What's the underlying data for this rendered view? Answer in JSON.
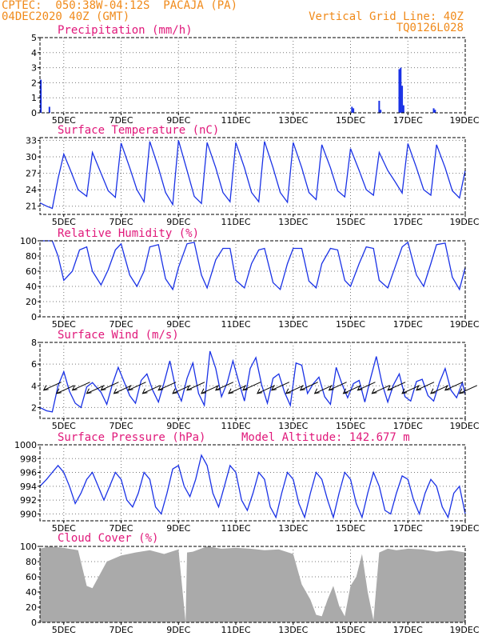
{
  "header": {
    "line1": "CPTEC:  050:38W-04:12S  PACAJA (PA)",
    "line2": "04DEC2020 40Z (GMT)",
    "grid_note": "Vertical Grid Line: 40Z",
    "code": "TQ0126L028"
  },
  "x_axis": {
    "start_day": 4.17,
    "end_day": 19,
    "tick_days": [
      5,
      7,
      9,
      11,
      13,
      15,
      17,
      19
    ],
    "tick_labels": [
      "5DEC",
      "7DEC",
      "9DEC",
      "11DEC",
      "13DEC",
      "15DEC",
      "17DEC",
      "19DEC"
    ]
  },
  "colors": {
    "series": "#1a32e6",
    "cloud": "#aaaaaa",
    "title": "#e0187a",
    "header": "#f08a1a"
  },
  "chart_data": [
    {
      "id": "precipitation",
      "type": "bar",
      "title": "Precipitation (mm/h)",
      "ylim": [
        0,
        5
      ],
      "yticks": [
        0,
        1,
        2,
        3,
        4,
        5
      ],
      "x": [
        4.2,
        4.5,
        15.05,
        15.1,
        16.0,
        16.05,
        16.7,
        16.75,
        16.8,
        16.85,
        17.9,
        17.95
      ],
      "values": [
        2.2,
        0.4,
        0.4,
        0.3,
        0.8,
        0.2,
        2.9,
        3.0,
        1.8,
        0.5,
        0.3,
        0.2
      ]
    },
    {
      "id": "temperature",
      "type": "line",
      "title": "Surface Temperature (nC)",
      "ylim": [
        19.5,
        33.5
      ],
      "yticks": [
        21,
        24,
        27,
        30,
        33
      ],
      "x": [
        4.17,
        4.4,
        4.6,
        4.8,
        5.0,
        5.2,
        5.5,
        5.8,
        6.0,
        6.3,
        6.55,
        6.8,
        7.0,
        7.3,
        7.55,
        7.8,
        8.0,
        8.3,
        8.55,
        8.8,
        9.0,
        9.3,
        9.55,
        9.8,
        10.0,
        10.3,
        10.55,
        10.8,
        11.0,
        11.3,
        11.55,
        11.8,
        12.0,
        12.3,
        12.55,
        12.8,
        13.0,
        13.3,
        13.55,
        13.8,
        14.0,
        14.3,
        14.55,
        14.8,
        15.0,
        15.3,
        15.55,
        15.8,
        16.0,
        16.3,
        16.55,
        16.8,
        17.0,
        17.3,
        17.55,
        17.8,
        18.0,
        18.3,
        18.55,
        18.8,
        19.0
      ],
      "values": [
        21.6,
        21.0,
        20.6,
        26.0,
        30.5,
        28.0,
        24.0,
        22.8,
        30.8,
        27.0,
        23.8,
        22.6,
        32.5,
        28.0,
        24.0,
        21.8,
        32.8,
        28.0,
        23.5,
        21.3,
        33.0,
        27.5,
        22.8,
        21.5,
        32.6,
        28.0,
        23.5,
        21.8,
        32.6,
        28.0,
        23.5,
        21.8,
        32.8,
        28.0,
        23.5,
        21.7,
        32.6,
        28.0,
        23.5,
        22.2,
        32.2,
        28.0,
        23.8,
        22.7,
        31.5,
        27.5,
        24.0,
        23.0,
        30.8,
        27.5,
        25.5,
        23.4,
        32.4,
        28.0,
        24.0,
        23.0,
        32.2,
        28.0,
        23.8,
        22.5,
        27.5
      ]
    },
    {
      "id": "humidity",
      "type": "line",
      "title": "Relative Humidity (%)",
      "ylim": [
        0,
        100
      ],
      "yticks": [
        0,
        20,
        40,
        60,
        80,
        100
      ],
      "x": [
        4.17,
        4.6,
        4.8,
        5.0,
        5.3,
        5.55,
        5.8,
        6.0,
        6.3,
        6.55,
        6.8,
        7.0,
        7.3,
        7.55,
        7.8,
        8.0,
        8.3,
        8.55,
        8.8,
        9.0,
        9.3,
        9.55,
        9.8,
        10.0,
        10.3,
        10.55,
        10.8,
        11.0,
        11.3,
        11.55,
        11.8,
        12.0,
        12.3,
        12.55,
        12.8,
        13.0,
        13.3,
        13.55,
        13.8,
        14.0,
        14.3,
        14.55,
        14.8,
        15.0,
        15.3,
        15.55,
        15.8,
        16.0,
        16.3,
        16.55,
        16.8,
        17.0,
        17.3,
        17.55,
        17.8,
        18.0,
        18.3,
        18.55,
        18.8,
        19.0
      ],
      "values": [
        100,
        100,
        80,
        48,
        60,
        88,
        92,
        60,
        42,
        62,
        88,
        96,
        55,
        40,
        60,
        92,
        95,
        50,
        36,
        65,
        96,
        98,
        55,
        38,
        75,
        90,
        90,
        48,
        38,
        70,
        88,
        90,
        45,
        36,
        70,
        90,
        90,
        47,
        38,
        70,
        90,
        88,
        48,
        40,
        70,
        92,
        90,
        48,
        38,
        65,
        92,
        98,
        55,
        40,
        70,
        95,
        97,
        52,
        36,
        65
      ]
    },
    {
      "id": "wind",
      "type": "line",
      "title": "Surface Wind (m/s)",
      "ylim": [
        1,
        8
      ],
      "yticks": [
        2,
        4,
        6,
        8
      ],
      "x": [
        4.17,
        4.4,
        4.6,
        4.8,
        5.0,
        5.2,
        5.4,
        5.6,
        5.8,
        6.0,
        6.3,
        6.5,
        6.7,
        6.9,
        7.1,
        7.3,
        7.5,
        7.7,
        7.9,
        8.1,
        8.3,
        8.5,
        8.7,
        8.9,
        9.1,
        9.3,
        9.5,
        9.7,
        9.9,
        10.1,
        10.3,
        10.5,
        10.7,
        10.9,
        11.1,
        11.3,
        11.5,
        11.7,
        11.9,
        12.1,
        12.3,
        12.5,
        12.7,
        12.9,
        13.1,
        13.3,
        13.5,
        13.7,
        13.9,
        14.1,
        14.3,
        14.5,
        14.7,
        14.9,
        15.1,
        15.3,
        15.5,
        15.7,
        15.9,
        16.1,
        16.3,
        16.5,
        16.7,
        16.9,
        17.1,
        17.3,
        17.5,
        17.7,
        17.9,
        18.1,
        18.3,
        18.5,
        18.7,
        18.9,
        19.0
      ],
      "values": [
        2.0,
        1.7,
        1.6,
        4.0,
        5.3,
        3.5,
        2.4,
        2.0,
        3.9,
        4.3,
        3.4,
        2.3,
        4.2,
        5.7,
        4.4,
        3.1,
        2.4,
        4.5,
        5.1,
        3.6,
        2.5,
        4.3,
        6.3,
        3.8,
        2.6,
        4.7,
        6.1,
        3.3,
        2.2,
        7.2,
        5.6,
        3.0,
        4.3,
        6.3,
        4.4,
        2.6,
        5.6,
        6.6,
        4.1,
        2.4,
        4.7,
        5.1,
        3.4,
        2.2,
        6.1,
        5.9,
        3.3,
        4.2,
        4.8,
        3.0,
        2.3,
        5.7,
        4.2,
        2.9,
        4.2,
        4.5,
        2.5,
        4.7,
        6.7,
        4.2,
        2.5,
        4.1,
        5.1,
        3.0,
        2.6,
        4.4,
        4.6,
        3.1,
        2.6,
        4.3,
        5.6,
        3.6,
        2.9,
        4.3,
        3.2
      ]
    },
    {
      "id": "pressure",
      "type": "line",
      "title": "Surface Pressure (hPa)",
      "ylim": [
        989,
        1000
      ],
      "yticks": [
        990,
        992,
        994,
        996,
        998,
        1000
      ],
      "x": [
        4.17,
        4.4,
        4.6,
        4.8,
        5.0,
        5.2,
        5.4,
        5.6,
        5.8,
        6.0,
        6.2,
        6.4,
        6.6,
        6.8,
        7.0,
        7.2,
        7.4,
        7.6,
        7.8,
        8.0,
        8.2,
        8.4,
        8.6,
        8.8,
        9.0,
        9.2,
        9.4,
        9.6,
        9.8,
        10.0,
        10.2,
        10.4,
        10.6,
        10.8,
        11.0,
        11.2,
        11.4,
        11.6,
        11.8,
        12.0,
        12.2,
        12.4,
        12.6,
        12.8,
        13.0,
        13.2,
        13.4,
        13.6,
        13.8,
        14.0,
        14.2,
        14.4,
        14.6,
        14.8,
        15.0,
        15.2,
        15.4,
        15.6,
        15.8,
        16.0,
        16.2,
        16.4,
        16.6,
        16.8,
        17.0,
        17.2,
        17.4,
        17.6,
        17.8,
        18.0,
        18.2,
        18.4,
        18.6,
        18.8,
        19.0
      ],
      "values": [
        994,
        995,
        996,
        997,
        996,
        994,
        991.5,
        993,
        995,
        996,
        994,
        992,
        994,
        996,
        995,
        992,
        991,
        993,
        996,
        995,
        991,
        990,
        993,
        996.5,
        997,
        994,
        992.5,
        995,
        998.5,
        997,
        993,
        991,
        994,
        997,
        996,
        992,
        990.5,
        993,
        996,
        995,
        991,
        989.5,
        993,
        996,
        995,
        991.5,
        989.5,
        993,
        996,
        995,
        992,
        989.5,
        993,
        996,
        995,
        991.5,
        989.5,
        993,
        996,
        994,
        990.5,
        990,
        993,
        995.5,
        995,
        992,
        990,
        993,
        995,
        994,
        991,
        989.5,
        993,
        994,
        990
      ]
    },
    {
      "id": "cloud",
      "type": "area",
      "title": "Cloud Cover (%)",
      "ylim": [
        0,
        100
      ],
      "yticks": [
        0,
        20,
        40,
        60,
        80,
        100
      ],
      "x": [
        4.17,
        4.5,
        5.0,
        5.5,
        5.8,
        6.0,
        6.5,
        7.0,
        7.5,
        8.0,
        8.5,
        9.0,
        9.25,
        9.3,
        9.5,
        10.0,
        10.5,
        11.0,
        11.5,
        12.0,
        12.5,
        13.0,
        13.3,
        13.6,
        13.8,
        14.0,
        14.2,
        14.4,
        14.6,
        14.8,
        15.0,
        15.2,
        15.4,
        15.6,
        15.8,
        16.0,
        16.3,
        16.6,
        17.0,
        17.5,
        18.0,
        18.5,
        19.0
      ],
      "values": [
        97,
        100,
        98,
        95,
        48,
        45,
        80,
        88,
        92,
        95,
        90,
        96,
        0,
        92,
        93,
        100,
        97,
        98,
        97,
        95,
        96,
        90,
        50,
        30,
        10,
        8,
        30,
        48,
        22,
        8,
        48,
        60,
        90,
        40,
        3,
        92,
        97,
        95,
        97,
        96,
        93,
        95,
        92
      ]
    }
  ],
  "panels": [
    {
      "title": "Precipitation (mm/h)"
    },
    {
      "title": "Surface Temperature (nC)"
    },
    {
      "title": "Relative Humidity (%)"
    },
    {
      "title": "Surface Wind (m/s)"
    },
    {
      "title": "Surface Pressure (hPa)",
      "extra": "Model Altitude: 142.677 m"
    },
    {
      "title": "Cloud Cover (%)"
    }
  ]
}
